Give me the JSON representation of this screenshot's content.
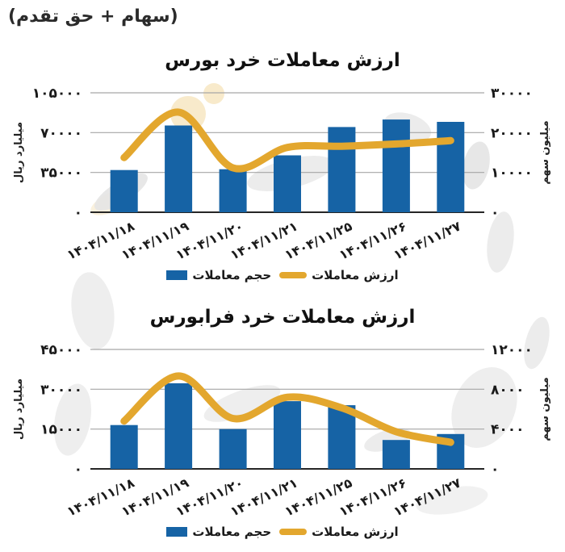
{
  "header": {
    "subtitle": "(سهام + حق تقدم)"
  },
  "colors": {
    "bar": "#1663a5",
    "line": "#e3a72e",
    "grid": "#a6a6a6",
    "axis": "#262626",
    "text": "#1a1a1a"
  },
  "chart_data": [
    {
      "type": "bar+line",
      "title": "ارزش معاملات خرد بورس",
      "categories": [
        "۱۴۰۴/۱۱/۱۸",
        "۱۴۰۴/۱۱/۱۹",
        "۱۴۰۴/۱۱/۲۰",
        "۱۴۰۴/۱۱/۲۱",
        "۱۴۰۴/۱۱/۲۵",
        "۱۴۰۴/۱۱/۲۶",
        "۱۴۰۴/۱۱/۲۷"
      ],
      "series": [
        {
          "name": "حجم معاملات",
          "type": "bar",
          "axis": "right",
          "values": [
            10600,
            21800,
            10800,
            14300,
            21400,
            23300,
            22700
          ]
        },
        {
          "name": "ارزش معاملات",
          "type": "line",
          "axis": "left",
          "values": [
            48000,
            88000,
            39000,
            57000,
            58000,
            60000,
            63000
          ]
        }
      ],
      "left_axis": {
        "title": "میلیارد ریال",
        "max": 105000,
        "ticks": [
          {
            "label": "۰",
            "value": 0
          },
          {
            "label": "۳۵۰۰۰",
            "value": 35000
          },
          {
            "label": "۷۰۰۰۰",
            "value": 70000
          },
          {
            "label": "۱۰۵۰۰۰",
            "value": 105000
          }
        ]
      },
      "right_axis": {
        "title": "میلیون سهم",
        "max": 30000,
        "ticks": [
          {
            "label": "۰",
            "value": 0
          },
          {
            "label": "۱۰۰۰۰",
            "value": 10000
          },
          {
            "label": "۲۰۰۰۰",
            "value": 20000
          },
          {
            "label": "۳۰۰۰۰",
            "value": 30000
          }
        ]
      }
    },
    {
      "type": "bar+line",
      "title": "ارزش معاملات خرد فرابورس",
      "categories": [
        "۱۴۰۴/۱۱/۱۸",
        "۱۴۰۴/۱۱/۱۹",
        "۱۴۰۴/۱۱/۲۰",
        "۱۴۰۴/۱۱/۲۱",
        "۱۴۰۴/۱۱/۲۵",
        "۱۴۰۴/۱۱/۲۶",
        "۱۴۰۴/۱۱/۲۷"
      ],
      "series": [
        {
          "name": "حجم معاملات",
          "type": "bar",
          "axis": "right",
          "values": [
            4400,
            8600,
            4000,
            6800,
            6400,
            2900,
            3500
          ]
        },
        {
          "name": "ارزش معاملات",
          "type": "line",
          "axis": "left",
          "values": [
            18000,
            35000,
            19000,
            27000,
            23000,
            14000,
            10000
          ]
        }
      ],
      "left_axis": {
        "title": "میلیارد ریال",
        "max": 45000,
        "ticks": [
          {
            "label": "۰",
            "value": 0
          },
          {
            "label": "۱۵۰۰۰",
            "value": 15000
          },
          {
            "label": "۳۰۰۰۰",
            "value": 30000
          },
          {
            "label": "۴۵۰۰۰",
            "value": 45000
          }
        ]
      },
      "right_axis": {
        "title": "میلیون سهم",
        "max": 12000,
        "ticks": [
          {
            "label": "۰",
            "value": 0
          },
          {
            "label": "۴۰۰۰",
            "value": 4000
          },
          {
            "label": "۸۰۰۰",
            "value": 8000
          },
          {
            "label": "۱۲۰۰۰",
            "value": 12000
          }
        ]
      }
    }
  ]
}
